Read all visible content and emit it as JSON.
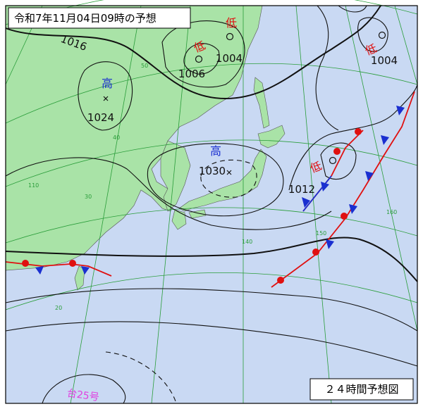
{
  "header": {
    "title": "令和7年11月04日09時の予想"
  },
  "footer": {
    "label": "２４時間予想図"
  },
  "pressure_systems": [
    {
      "kind": "高",
      "pressure": 1024
    },
    {
      "kind": "高",
      "pressure": 1030
    },
    {
      "kind": "低",
      "pressure": 1006
    },
    {
      "kind": "低",
      "pressure": 1004
    },
    {
      "kind": "低",
      "pressure": 1004
    },
    {
      "kind": "低",
      "pressure": 1012
    }
  ],
  "isobar_labels": [
    1016
  ],
  "typhoon": "台25号",
  "grid_labels": [
    "50",
    "40",
    "30",
    "20",
    "110",
    "140",
    "150",
    "160"
  ]
}
